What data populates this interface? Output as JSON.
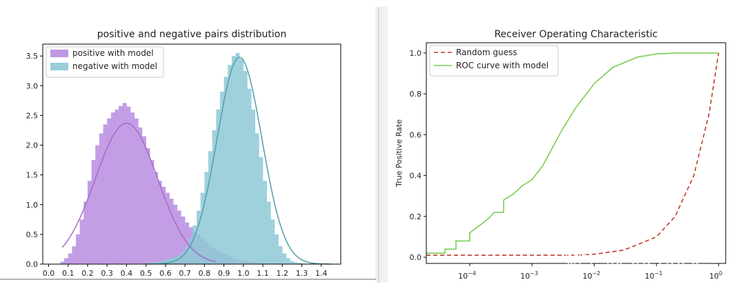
{
  "chart_data": [
    {
      "type": "histogram",
      "title": "positive and negative pairs distribution",
      "xlim": [
        -0.03,
        1.5
      ],
      "ylim": [
        0,
        3.7
      ],
      "xticks": [
        "0.0",
        "0.1",
        "0.2",
        "0.3",
        "0.4",
        "0.5",
        "0.6",
        "0.7",
        "0.8",
        "0.9",
        "1.0",
        "1.1",
        "1.2",
        "1.3",
        "1.4"
      ],
      "yticks": [
        "0.0",
        "0.5",
        "1.0",
        "1.5",
        "2.0",
        "2.5",
        "3.0",
        "3.5"
      ],
      "legend": {
        "placement": "upper-left",
        "entries": [
          "positive with model",
          "negative with model"
        ]
      },
      "colors": {
        "positive": "#b88de0",
        "negative": "#8ec9d6",
        "positive_fit": "#a56bc8",
        "negative_fit": "#4e9fa6"
      },
      "series": [
        {
          "name": "positive with model",
          "bin_start": 0.06,
          "bin_width": 0.02,
          "values": [
            0.04,
            0.1,
            0.18,
            0.3,
            0.5,
            0.75,
            1.05,
            1.4,
            1.75,
            2.0,
            2.2,
            2.35,
            2.45,
            2.55,
            2.6,
            2.66,
            2.71,
            2.65,
            2.55,
            2.45,
            2.3,
            2.15,
            1.95,
            1.75,
            1.55,
            1.4,
            1.3,
            1.2,
            1.1,
            1.0,
            0.9,
            0.8,
            0.7,
            0.62,
            0.55,
            0.5,
            0.44,
            0.38,
            0.32,
            0.27,
            0.23,
            0.19,
            0.16,
            0.13,
            0.1,
            0.08,
            0.06,
            0.05,
            0.04,
            0.03,
            0.02,
            0.02,
            0.01,
            0.01,
            0.01,
            0.01,
            0.01
          ]
        },
        {
          "name": "negative with model",
          "bin_start": 0.5,
          "bin_width": 0.02,
          "values": [
            0.01,
            0.02,
            0.03,
            0.04,
            0.06,
            0.08,
            0.1,
            0.12,
            0.15,
            0.2,
            0.3,
            0.45,
            0.65,
            0.9,
            1.2,
            1.55,
            1.9,
            2.25,
            2.6,
            2.9,
            3.15,
            3.35,
            3.5,
            3.55,
            3.45,
            3.25,
            2.95,
            2.6,
            2.2,
            1.8,
            1.4,
            1.05,
            0.75,
            0.5,
            0.3,
            0.18,
            0.1,
            0.05,
            0.03,
            0.02,
            0.01,
            0.01,
            0.01
          ]
        }
      ],
      "fits": [
        {
          "name": "positive with model",
          "mean": 0.4,
          "peak": 2.37,
          "sigma": 0.16,
          "range": [
            0.07,
            0.86
          ]
        },
        {
          "name": "negative with model",
          "mean": 0.98,
          "peak": 3.48,
          "sigma": 0.115,
          "range": [
            0.5,
            1.45
          ]
        }
      ]
    },
    {
      "type": "line",
      "title": "Receiver Operating Characteristic",
      "xscale": "log",
      "xlim": [
        2e-05,
        1.3
      ],
      "ylim": [
        -0.03,
        1.05
      ],
      "ylabel": "True Positive Rate",
      "xticks": [
        {
          "value": 0.0001,
          "label": "10",
          "exp": "−4"
        },
        {
          "value": 0.001,
          "label": "10",
          "exp": "−3"
        },
        {
          "value": 0.01,
          "label": "10",
          "exp": "−2"
        },
        {
          "value": 0.1,
          "label": "10",
          "exp": "−1"
        },
        {
          "value": 1,
          "label": "10",
          "exp": "0"
        }
      ],
      "yticks": [
        "0.0",
        "0.2",
        "0.4",
        "0.6",
        "0.8",
        "1.0"
      ],
      "legend": {
        "placement": "upper-left",
        "entries": [
          "Random guess",
          "ROC curve with model"
        ]
      },
      "colors": {
        "random": "#c0392b",
        "roc": "#7ccd55"
      },
      "series": [
        {
          "name": "Random guess",
          "style": "dashed",
          "x": [
            2e-05,
            0.001,
            0.005,
            0.01,
            0.03,
            0.1,
            0.2,
            0.4,
            0.7,
            1.0
          ],
          "y": [
            0.01,
            0.01,
            0.01,
            0.015,
            0.035,
            0.1,
            0.2,
            0.4,
            0.7,
            1.0
          ]
        },
        {
          "name": "ROC curve with model",
          "style": "solid",
          "x": [
            2e-05,
            4e-05,
            4e-05,
            6e-05,
            6e-05,
            0.0001,
            0.0001,
            0.00015,
            0.0002,
            0.00025,
            0.00035,
            0.00035,
            0.0005,
            0.0007,
            0.001,
            0.0015,
            0.002,
            0.003,
            0.005,
            0.01,
            0.02,
            0.05,
            0.1,
            0.2,
            1.0
          ],
          "y": [
            0.02,
            0.02,
            0.04,
            0.04,
            0.08,
            0.08,
            0.12,
            0.16,
            0.19,
            0.22,
            0.22,
            0.28,
            0.31,
            0.35,
            0.38,
            0.45,
            0.52,
            0.62,
            0.73,
            0.85,
            0.93,
            0.98,
            0.995,
            1.0,
            1.0
          ]
        }
      ]
    }
  ],
  "watermark": "知乎 @Sherlock"
}
